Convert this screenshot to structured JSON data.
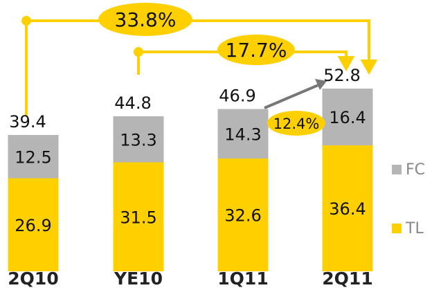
{
  "chart_data": {
    "type": "stacked_bar",
    "categories": [
      "2Q10",
      "YE10",
      "1Q11",
      "2Q11"
    ],
    "series": [
      {
        "name": "TL",
        "color": "#ffd000",
        "values": [
          26.9,
          31.5,
          32.6,
          36.4
        ]
      },
      {
        "name": "FC",
        "color": "#b5b5b5",
        "values": [
          12.5,
          13.3,
          14.3,
          16.4
        ]
      }
    ],
    "totals": [
      39.4,
      44.8,
      46.9,
      52.8
    ],
    "annotations": [
      "33.8%",
      "17.7%",
      "12.4%"
    ]
  }
}
